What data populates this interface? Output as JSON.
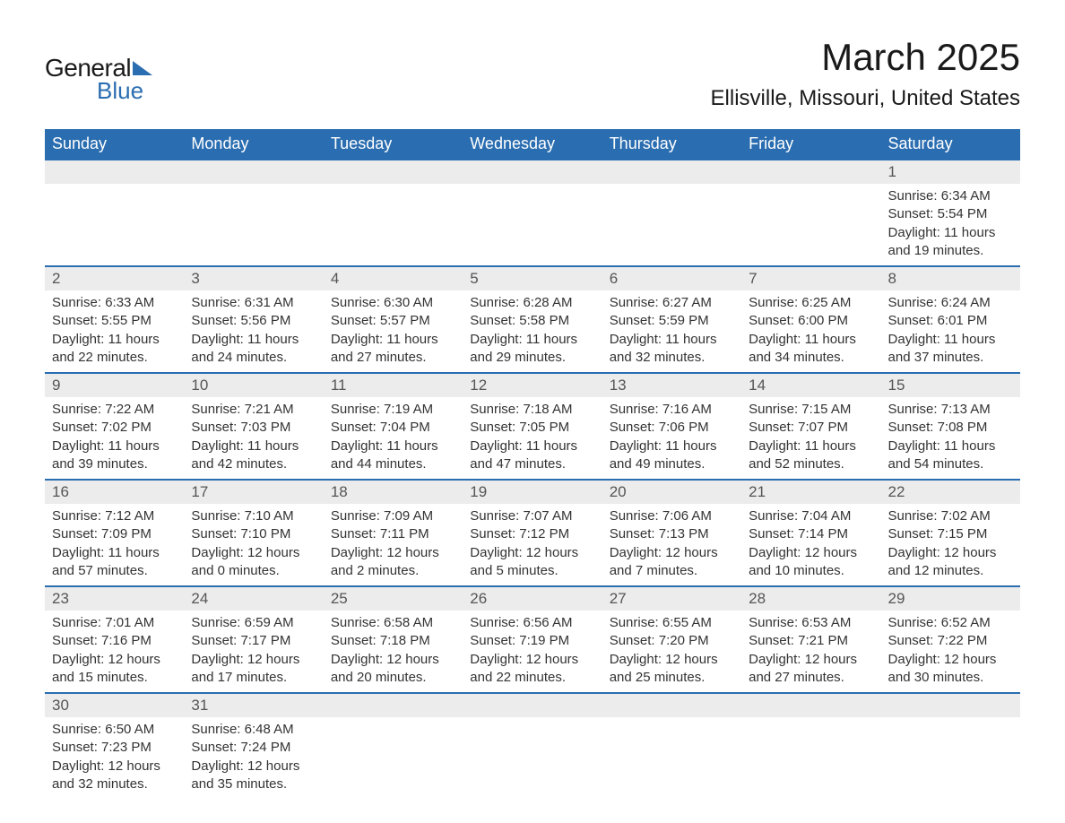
{
  "logo": {
    "text_general": "General",
    "text_blue": "Blue"
  },
  "title": {
    "month": "March 2025",
    "location": "Ellisville, Missouri, United States"
  },
  "colors": {
    "header_bg": "#2a6db0",
    "header_text": "#ffffff",
    "daynum_bg": "#ececec",
    "daynum_text": "#555555",
    "body_text": "#333333",
    "row_border": "#2a6db0",
    "page_bg": "#ffffff"
  },
  "fonts": {
    "title_size_pt": 32,
    "location_size_pt": 18,
    "header_size_pt": 14,
    "daynum_size_pt": 13,
    "body_size_pt": 11
  },
  "day_headers": [
    "Sunday",
    "Monday",
    "Tuesday",
    "Wednesday",
    "Thursday",
    "Friday",
    "Saturday"
  ],
  "weeks": [
    [
      {
        "n": "",
        "sunrise": "",
        "sunset": "",
        "daylight": ""
      },
      {
        "n": "",
        "sunrise": "",
        "sunset": "",
        "daylight": ""
      },
      {
        "n": "",
        "sunrise": "",
        "sunset": "",
        "daylight": ""
      },
      {
        "n": "",
        "sunrise": "",
        "sunset": "",
        "daylight": ""
      },
      {
        "n": "",
        "sunrise": "",
        "sunset": "",
        "daylight": ""
      },
      {
        "n": "",
        "sunrise": "",
        "sunset": "",
        "daylight": ""
      },
      {
        "n": "1",
        "sunrise": "Sunrise: 6:34 AM",
        "sunset": "Sunset: 5:54 PM",
        "daylight": "Daylight: 11 hours and 19 minutes."
      }
    ],
    [
      {
        "n": "2",
        "sunrise": "Sunrise: 6:33 AM",
        "sunset": "Sunset: 5:55 PM",
        "daylight": "Daylight: 11 hours and 22 minutes."
      },
      {
        "n": "3",
        "sunrise": "Sunrise: 6:31 AM",
        "sunset": "Sunset: 5:56 PM",
        "daylight": "Daylight: 11 hours and 24 minutes."
      },
      {
        "n": "4",
        "sunrise": "Sunrise: 6:30 AM",
        "sunset": "Sunset: 5:57 PM",
        "daylight": "Daylight: 11 hours and 27 minutes."
      },
      {
        "n": "5",
        "sunrise": "Sunrise: 6:28 AM",
        "sunset": "Sunset: 5:58 PM",
        "daylight": "Daylight: 11 hours and 29 minutes."
      },
      {
        "n": "6",
        "sunrise": "Sunrise: 6:27 AM",
        "sunset": "Sunset: 5:59 PM",
        "daylight": "Daylight: 11 hours and 32 minutes."
      },
      {
        "n": "7",
        "sunrise": "Sunrise: 6:25 AM",
        "sunset": "Sunset: 6:00 PM",
        "daylight": "Daylight: 11 hours and 34 minutes."
      },
      {
        "n": "8",
        "sunrise": "Sunrise: 6:24 AM",
        "sunset": "Sunset: 6:01 PM",
        "daylight": "Daylight: 11 hours and 37 minutes."
      }
    ],
    [
      {
        "n": "9",
        "sunrise": "Sunrise: 7:22 AM",
        "sunset": "Sunset: 7:02 PM",
        "daylight": "Daylight: 11 hours and 39 minutes."
      },
      {
        "n": "10",
        "sunrise": "Sunrise: 7:21 AM",
        "sunset": "Sunset: 7:03 PM",
        "daylight": "Daylight: 11 hours and 42 minutes."
      },
      {
        "n": "11",
        "sunrise": "Sunrise: 7:19 AM",
        "sunset": "Sunset: 7:04 PM",
        "daylight": "Daylight: 11 hours and 44 minutes."
      },
      {
        "n": "12",
        "sunrise": "Sunrise: 7:18 AM",
        "sunset": "Sunset: 7:05 PM",
        "daylight": "Daylight: 11 hours and 47 minutes."
      },
      {
        "n": "13",
        "sunrise": "Sunrise: 7:16 AM",
        "sunset": "Sunset: 7:06 PM",
        "daylight": "Daylight: 11 hours and 49 minutes."
      },
      {
        "n": "14",
        "sunrise": "Sunrise: 7:15 AM",
        "sunset": "Sunset: 7:07 PM",
        "daylight": "Daylight: 11 hours and 52 minutes."
      },
      {
        "n": "15",
        "sunrise": "Sunrise: 7:13 AM",
        "sunset": "Sunset: 7:08 PM",
        "daylight": "Daylight: 11 hours and 54 minutes."
      }
    ],
    [
      {
        "n": "16",
        "sunrise": "Sunrise: 7:12 AM",
        "sunset": "Sunset: 7:09 PM",
        "daylight": "Daylight: 11 hours and 57 minutes."
      },
      {
        "n": "17",
        "sunrise": "Sunrise: 7:10 AM",
        "sunset": "Sunset: 7:10 PM",
        "daylight": "Daylight: 12 hours and 0 minutes."
      },
      {
        "n": "18",
        "sunrise": "Sunrise: 7:09 AM",
        "sunset": "Sunset: 7:11 PM",
        "daylight": "Daylight: 12 hours and 2 minutes."
      },
      {
        "n": "19",
        "sunrise": "Sunrise: 7:07 AM",
        "sunset": "Sunset: 7:12 PM",
        "daylight": "Daylight: 12 hours and 5 minutes."
      },
      {
        "n": "20",
        "sunrise": "Sunrise: 7:06 AM",
        "sunset": "Sunset: 7:13 PM",
        "daylight": "Daylight: 12 hours and 7 minutes."
      },
      {
        "n": "21",
        "sunrise": "Sunrise: 7:04 AM",
        "sunset": "Sunset: 7:14 PM",
        "daylight": "Daylight: 12 hours and 10 minutes."
      },
      {
        "n": "22",
        "sunrise": "Sunrise: 7:02 AM",
        "sunset": "Sunset: 7:15 PM",
        "daylight": "Daylight: 12 hours and 12 minutes."
      }
    ],
    [
      {
        "n": "23",
        "sunrise": "Sunrise: 7:01 AM",
        "sunset": "Sunset: 7:16 PM",
        "daylight": "Daylight: 12 hours and 15 minutes."
      },
      {
        "n": "24",
        "sunrise": "Sunrise: 6:59 AM",
        "sunset": "Sunset: 7:17 PM",
        "daylight": "Daylight: 12 hours and 17 minutes."
      },
      {
        "n": "25",
        "sunrise": "Sunrise: 6:58 AM",
        "sunset": "Sunset: 7:18 PM",
        "daylight": "Daylight: 12 hours and 20 minutes."
      },
      {
        "n": "26",
        "sunrise": "Sunrise: 6:56 AM",
        "sunset": "Sunset: 7:19 PM",
        "daylight": "Daylight: 12 hours and 22 minutes."
      },
      {
        "n": "27",
        "sunrise": "Sunrise: 6:55 AM",
        "sunset": "Sunset: 7:20 PM",
        "daylight": "Daylight: 12 hours and 25 minutes."
      },
      {
        "n": "28",
        "sunrise": "Sunrise: 6:53 AM",
        "sunset": "Sunset: 7:21 PM",
        "daylight": "Daylight: 12 hours and 27 minutes."
      },
      {
        "n": "29",
        "sunrise": "Sunrise: 6:52 AM",
        "sunset": "Sunset: 7:22 PM",
        "daylight": "Daylight: 12 hours and 30 minutes."
      }
    ],
    [
      {
        "n": "30",
        "sunrise": "Sunrise: 6:50 AM",
        "sunset": "Sunset: 7:23 PM",
        "daylight": "Daylight: 12 hours and 32 minutes."
      },
      {
        "n": "31",
        "sunrise": "Sunrise: 6:48 AM",
        "sunset": "Sunset: 7:24 PM",
        "daylight": "Daylight: 12 hours and 35 minutes."
      },
      {
        "n": "",
        "sunrise": "",
        "sunset": "",
        "daylight": ""
      },
      {
        "n": "",
        "sunrise": "",
        "sunset": "",
        "daylight": ""
      },
      {
        "n": "",
        "sunrise": "",
        "sunset": "",
        "daylight": ""
      },
      {
        "n": "",
        "sunrise": "",
        "sunset": "",
        "daylight": ""
      },
      {
        "n": "",
        "sunrise": "",
        "sunset": "",
        "daylight": ""
      }
    ]
  ]
}
